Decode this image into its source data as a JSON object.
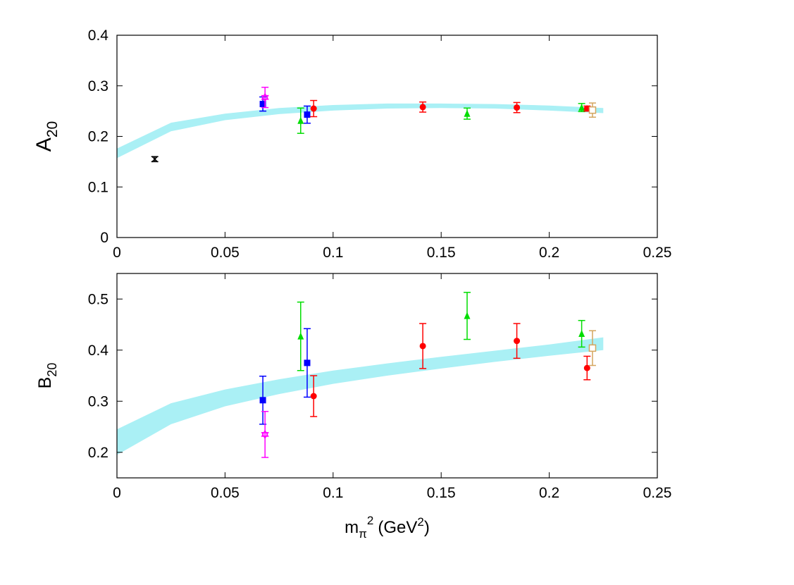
{
  "chart_data": [
    {
      "type": "scatter",
      "ylabel": "A",
      "ylabel_sub": "20",
      "xlim": [
        0,
        0.25
      ],
      "ylim": [
        0,
        0.4
      ],
      "xticks": [
        "0",
        "0.05",
        "0.1",
        "0.15",
        "0.2",
        "0.25"
      ],
      "yticks": [
        "0",
        "0.1",
        "0.2",
        "0.3",
        "0.4"
      ],
      "grid": false,
      "band": {
        "color": "#aaf0f5",
        "x": [
          0,
          0.025,
          0.05,
          0.075,
          0.1,
          0.125,
          0.15,
          0.175,
          0.2,
          0.225
        ],
        "upper": [
          0.176,
          0.227,
          0.245,
          0.256,
          0.262,
          0.265,
          0.265,
          0.264,
          0.261,
          0.256
        ],
        "lower": [
          0.157,
          0.21,
          0.232,
          0.244,
          0.251,
          0.255,
          0.256,
          0.255,
          0.251,
          0.246
        ]
      },
      "series": [
        {
          "marker": "cross",
          "color": "#000000",
          "points": [
            {
              "x": 0.0175,
              "y": 0.155,
              "err": 0.005
            }
          ]
        },
        {
          "marker": "square",
          "color": "#0000ff",
          "points": [
            {
              "x": 0.0675,
              "y": 0.264,
              "err": 0.014
            },
            {
              "x": 0.088,
              "y": 0.243,
              "err": 0.017
            }
          ]
        },
        {
          "marker": "star",
          "color": "#ff00ff",
          "points": [
            {
              "x": 0.0685,
              "y": 0.277,
              "err": 0.02
            }
          ]
        },
        {
          "marker": "triangle",
          "color": "#00dd00",
          "points": [
            {
              "x": 0.085,
              "y": 0.231,
              "err": 0.025
            },
            {
              "x": 0.162,
              "y": 0.245,
              "err": 0.011
            },
            {
              "x": 0.215,
              "y": 0.257,
              "err": 0.008
            }
          ]
        },
        {
          "marker": "circle",
          "color": "#ff0000",
          "points": [
            {
              "x": 0.091,
              "y": 0.255,
              "err": 0.016
            },
            {
              "x": 0.1415,
              "y": 0.258,
              "err": 0.01
            },
            {
              "x": 0.185,
              "y": 0.257,
              "err": 0.01
            },
            {
              "x": 0.2175,
              "y": 0.255,
              "err": 0.005
            }
          ]
        },
        {
          "marker": "open-square",
          "color": "#d4a55e",
          "points": [
            {
              "x": 0.22,
              "y": 0.252,
              "err": 0.014
            }
          ]
        }
      ]
    },
    {
      "type": "scatter",
      "ylabel": "B",
      "ylabel_sub": "20",
      "xlabel": "m",
      "xlabel_sub": "π",
      "xlabel_sup": "2",
      "xlabel_unit_pre": "(GeV",
      "xlabel_unit_sup": "2",
      "xlabel_unit_post": ")",
      "xlim": [
        0,
        0.25
      ],
      "ylim": [
        0.15,
        0.55
      ],
      "xticks": [
        "0",
        "0.05",
        "0.1",
        "0.15",
        "0.2",
        "0.25"
      ],
      "yticks": [
        "0.2",
        "0.3",
        "0.4",
        "0.5"
      ],
      "grid": false,
      "band": {
        "color": "#aaf0f5",
        "x": [
          0,
          0.025,
          0.05,
          0.075,
          0.1,
          0.125,
          0.15,
          0.175,
          0.2,
          0.225
        ],
        "upper": [
          0.245,
          0.296,
          0.323,
          0.343,
          0.36,
          0.374,
          0.387,
          0.399,
          0.411,
          0.425
        ],
        "lower": [
          0.195,
          0.255,
          0.29,
          0.314,
          0.334,
          0.35,
          0.364,
          0.377,
          0.389,
          0.4
        ]
      },
      "series": [
        {
          "marker": "square",
          "color": "#0000ff",
          "points": [
            {
              "x": 0.0675,
              "y": 0.302,
              "err": 0.047
            },
            {
              "x": 0.088,
              "y": 0.375,
              "err": 0.067
            }
          ]
        },
        {
          "marker": "star",
          "color": "#ff00ff",
          "points": [
            {
              "x": 0.0685,
              "y": 0.235,
              "err": 0.045
            }
          ]
        },
        {
          "marker": "triangle",
          "color": "#00dd00",
          "points": [
            {
              "x": 0.085,
              "y": 0.427,
              "err": 0.067
            },
            {
              "x": 0.162,
              "y": 0.467,
              "err": 0.046
            },
            {
              "x": 0.215,
              "y": 0.432,
              "err": 0.026
            }
          ]
        },
        {
          "marker": "circle",
          "color": "#ff0000",
          "points": [
            {
              "x": 0.091,
              "y": 0.31,
              "err": 0.04
            },
            {
              "x": 0.1415,
              "y": 0.408,
              "err": 0.044
            },
            {
              "x": 0.185,
              "y": 0.418,
              "err": 0.034
            },
            {
              "x": 0.2175,
              "y": 0.365,
              "err": 0.023
            }
          ]
        },
        {
          "marker": "open-square",
          "color": "#d4a55e",
          "points": [
            {
              "x": 0.22,
              "y": 0.404,
              "err": 0.034
            }
          ]
        }
      ]
    }
  ]
}
